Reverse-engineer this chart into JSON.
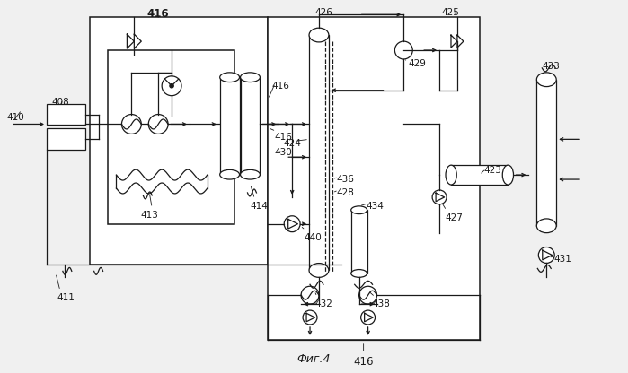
{
  "title": "Фиг.4",
  "bg_color": "#f0f0f0",
  "line_color": "#1a1a1a",
  "lw": 0.9,
  "lw2": 1.1,
  "fs": 6.5
}
